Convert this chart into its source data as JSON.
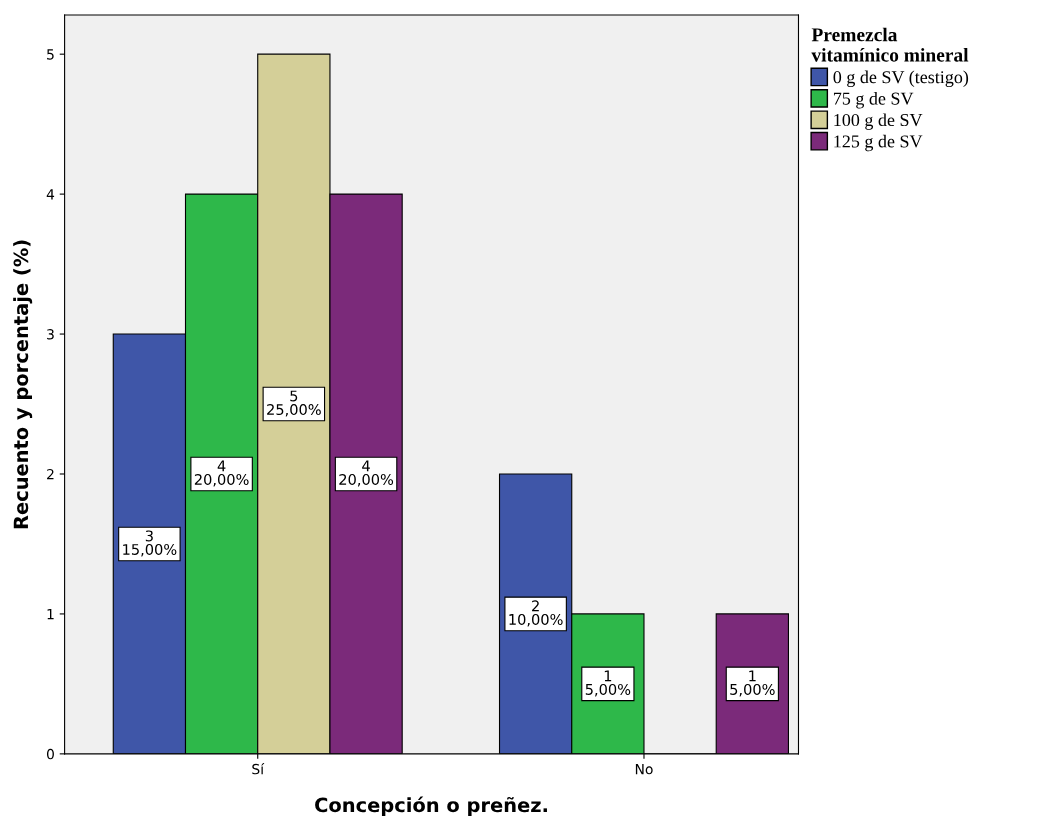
{
  "chart_data": {
    "type": "bar",
    "xlabel": "Concepción o preñez.",
    "ylabel": "Recuento y porcentaje (%)",
    "legend_title": "Premezcla\nvitamínico mineral",
    "categories": [
      "Sí",
      "No"
    ],
    "series": [
      {
        "name": "0 g de SV (testigo)",
        "color": "#3f56a8",
        "values": [
          3,
          2
        ],
        "value_labels": [
          "3\n15,00%",
          "2\n10,00%"
        ]
      },
      {
        "name": "75 g de SV",
        "color": "#2eb84a",
        "values": [
          4,
          1
        ],
        "value_labels": [
          "4\n20,00%",
          "1\n5,00%"
        ]
      },
      {
        "name": "100 g de SV",
        "color": "#d4cf98",
        "values": [
          5,
          0
        ],
        "value_labels": [
          "5\n25,00%",
          null
        ]
      },
      {
        "name": "125 g de SV",
        "color": "#7b2a7a",
        "values": [
          4,
          1
        ],
        "value_labels": [
          "4\n20,00%",
          "1\n5,00%"
        ]
      }
    ],
    "ylim": [
      0,
      5.28
    ],
    "yticks": [
      0,
      1,
      2,
      3,
      4,
      5
    ],
    "grid": false,
    "legend": "top right"
  }
}
